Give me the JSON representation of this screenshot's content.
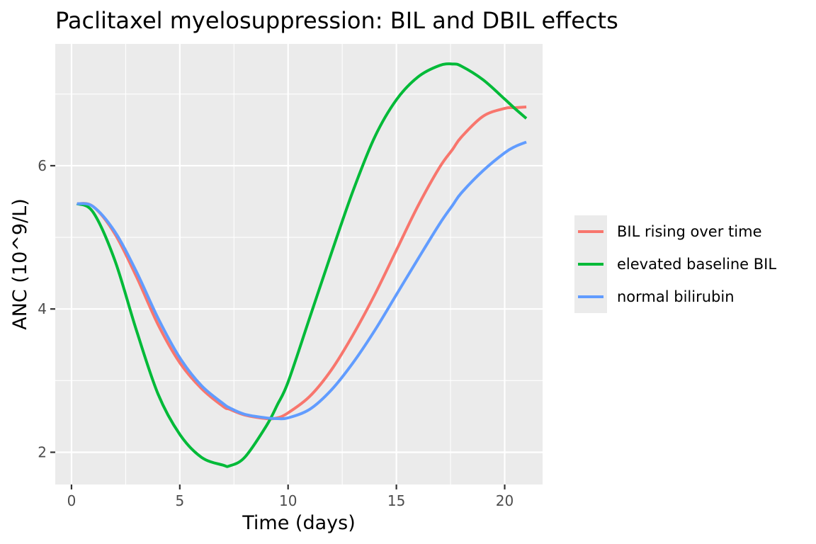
{
  "chart_data": {
    "type": "line",
    "title": "Paclitaxel myelosuppression: BIL and DBIL effects",
    "xlabel": "Time (days)",
    "ylabel": "ANC (10^9/L)",
    "xlim": [
      -0.75,
      21.75
    ],
    "ylim": [
      1.55,
      7.7
    ],
    "x_ticks": [
      0,
      5,
      10,
      15,
      20
    ],
    "x_tick_labels": [
      "0",
      "5",
      "10",
      "15",
      "20"
    ],
    "y_ticks": [
      2,
      4,
      6
    ],
    "y_tick_labels": [
      "2",
      "4",
      "6"
    ],
    "grid": true,
    "legend_position": "right",
    "x": [
      0.25,
      1,
      2,
      3,
      4,
      5,
      6,
      7,
      7.3,
      8,
      9,
      9.5,
      10,
      11,
      12,
      13,
      14,
      15,
      16,
      17,
      17.6,
      18,
      19,
      20,
      20.5,
      21
    ],
    "series": [
      {
        "name": "BIL rising over time",
        "color": "#F8766D",
        "values": [
          5.47,
          5.43,
          5.05,
          4.45,
          3.78,
          3.25,
          2.89,
          2.64,
          2.6,
          2.52,
          2.47,
          2.48,
          2.55,
          2.78,
          3.15,
          3.64,
          4.2,
          4.82,
          5.44,
          5.98,
          6.23,
          6.4,
          6.69,
          6.8,
          6.81,
          6.82
        ]
      },
      {
        "name": "elevated baseline BIL",
        "color": "#00BA38",
        "values": [
          5.47,
          5.35,
          4.68,
          3.7,
          2.81,
          2.25,
          1.93,
          1.82,
          1.81,
          1.93,
          2.37,
          2.66,
          2.98,
          3.88,
          4.78,
          5.65,
          6.4,
          6.92,
          7.24,
          7.4,
          7.42,
          7.39,
          7.2,
          6.93,
          6.79,
          6.66
        ]
      },
      {
        "name": "normal bilirubin",
        "color": "#619CFF",
        "values": [
          5.47,
          5.43,
          5.08,
          4.52,
          3.87,
          3.32,
          2.93,
          2.68,
          2.62,
          2.53,
          2.48,
          2.47,
          2.48,
          2.6,
          2.87,
          3.25,
          3.7,
          4.2,
          4.7,
          5.19,
          5.45,
          5.62,
          5.93,
          6.18,
          6.27,
          6.33
        ]
      }
    ]
  }
}
